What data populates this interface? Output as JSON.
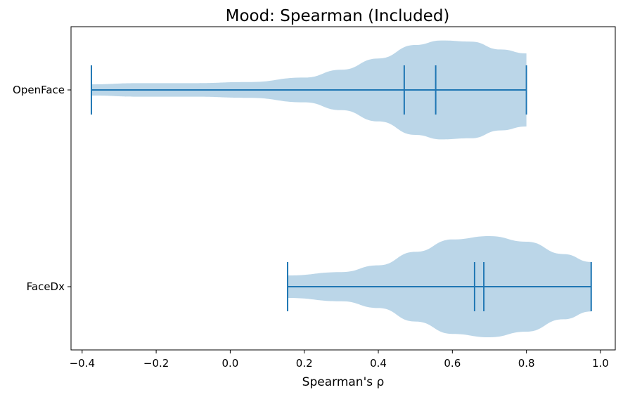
{
  "chart_data": {
    "type": "violin",
    "orientation": "horizontal",
    "title": "Mood: Spearman (Included)",
    "xlabel": "Spearman's ρ",
    "ylabel": "",
    "xlim": [
      -0.43,
      1.04
    ],
    "xticks": [
      -0.4,
      -0.2,
      0.0,
      0.2,
      0.4,
      0.6,
      0.8,
      1.0
    ],
    "xtick_labels": [
      "−0.4",
      "−0.2",
      "0.0",
      "0.2",
      "0.4",
      "0.6",
      "0.8",
      "1.0"
    ],
    "grid": false,
    "legend": "none",
    "colors": {
      "body_fill": "#1f77b4",
      "body_opacity": 0.3,
      "lines": "#1f77b4"
    },
    "categories": [
      "FaceDx",
      "OpenFace"
    ],
    "series": [
      {
        "category": "OpenFace",
        "min": -0.375,
        "max": 0.8,
        "mean": 0.47,
        "median": 0.555,
        "density": [
          [
            -0.375,
            0.1
          ],
          [
            -0.25,
            0.12
          ],
          [
            -0.1,
            0.12
          ],
          [
            0.05,
            0.14
          ],
          [
            0.2,
            0.22
          ],
          [
            0.3,
            0.36
          ],
          [
            0.4,
            0.56
          ],
          [
            0.5,
            0.8
          ],
          [
            0.57,
            0.88
          ],
          [
            0.65,
            0.86
          ],
          [
            0.73,
            0.72
          ],
          [
            0.8,
            0.65
          ]
        ]
      },
      {
        "category": "FaceDx",
        "min": 0.155,
        "max": 0.975,
        "mean": 0.66,
        "median": 0.685,
        "density": [
          [
            0.155,
            0.2
          ],
          [
            0.3,
            0.26
          ],
          [
            0.4,
            0.38
          ],
          [
            0.5,
            0.62
          ],
          [
            0.6,
            0.84
          ],
          [
            0.7,
            0.9
          ],
          [
            0.8,
            0.8
          ],
          [
            0.9,
            0.58
          ],
          [
            0.975,
            0.44
          ]
        ]
      }
    ]
  }
}
